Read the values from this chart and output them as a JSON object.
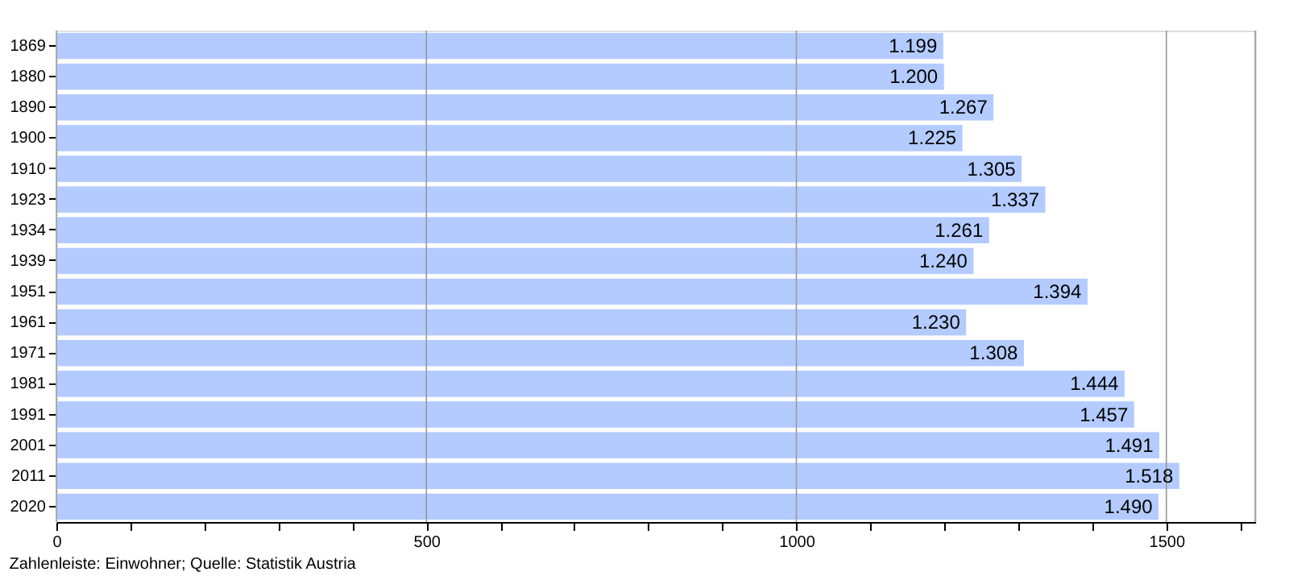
{
  "chart_data": {
    "type": "bar",
    "orientation": "horizontal",
    "categories": [
      "1869",
      "1880",
      "1890",
      "1900",
      "1910",
      "1923",
      "1934",
      "1939",
      "1951",
      "1961",
      "1971",
      "1981",
      "1991",
      "2001",
      "2011",
      "2020"
    ],
    "values": [
      1199,
      1200,
      1267,
      1225,
      1305,
      1337,
      1261,
      1240,
      1394,
      1230,
      1308,
      1444,
      1457,
      1491,
      1518,
      1490
    ],
    "value_labels": [
      "1.199",
      "1.200",
      "1.267",
      "1.225",
      "1.305",
      "1.337",
      "1.261",
      "1.240",
      "1.394",
      "1.230",
      "1.308",
      "1.444",
      "1.457",
      "1.491",
      "1.518",
      "1.490"
    ],
    "color": "#b3cbff",
    "xlim": [
      0,
      1620
    ],
    "xticks": [
      0,
      {
        "value": 100,
        "label": null
      },
      {
        "value": 200,
        "label": null
      },
      {
        "value": 300,
        "label": null
      },
      {
        "value": 400,
        "label": null
      },
      500,
      {
        "value": 600,
        "label": null
      },
      {
        "value": 700,
        "label": null
      },
      {
        "value": 800,
        "label": null
      },
      {
        "value": 900,
        "label": null
      },
      1000,
      {
        "value": 1100,
        "label": null
      },
      {
        "value": 1200,
        "label": null
      },
      {
        "value": 1300,
        "label": null
      },
      {
        "value": 1400,
        "label": null
      },
      1500,
      {
        "value": 1600,
        "label": null
      }
    ],
    "grid": "x",
    "annotations": [
      "Zahlenleiste: Einwohner; Quelle: Statistik Austria"
    ]
  }
}
